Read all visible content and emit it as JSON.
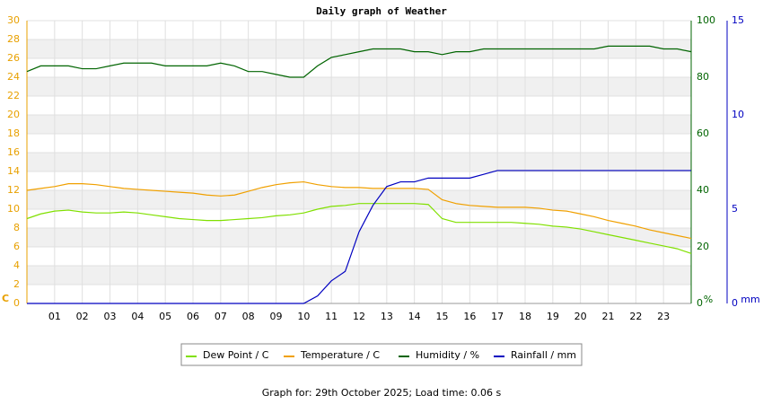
{
  "chart_data": {
    "type": "line",
    "title": "Daily graph of Weather",
    "footer": "Graph for: 29th October 2025; Load time: 0.06 s",
    "grid": true,
    "x": [
      0,
      0.5,
      1,
      1.5,
      2,
      2.5,
      3,
      3.5,
      4,
      4.5,
      5,
      5.5,
      6,
      6.5,
      7,
      7.5,
      8,
      8.5,
      9,
      9.5,
      10,
      10.5,
      11,
      11.5,
      12,
      12.5,
      13,
      13.5,
      14,
      14.5,
      15,
      15.5,
      16,
      16.5,
      17,
      17.5,
      18,
      18.5,
      19,
      19.5,
      20,
      20.5,
      21,
      21.5,
      22,
      22.5,
      23,
      23.5,
      24
    ],
    "xlim": [
      0,
      24
    ],
    "xticks": [
      {
        "value": 1,
        "label": "01"
      },
      {
        "value": 2,
        "label": "02"
      },
      {
        "value": 3,
        "label": "03"
      },
      {
        "value": 4,
        "label": "04"
      },
      {
        "value": 5,
        "label": "05"
      },
      {
        "value": 6,
        "label": "06"
      },
      {
        "value": 7,
        "label": "07"
      },
      {
        "value": 8,
        "label": "08"
      },
      {
        "value": 9,
        "label": "09"
      },
      10,
      11,
      12,
      13,
      14,
      15,
      16,
      17,
      18,
      19,
      20,
      21,
      22,
      23
    ],
    "ylabel": "C",
    "ylim": [
      0,
      30
    ],
    "yticks": [
      0,
      2,
      4,
      6,
      8,
      10,
      12,
      14,
      16,
      18,
      20,
      22,
      24,
      26,
      28,
      30
    ],
    "ycolor": "#e8a000",
    "y2label": "%",
    "y2lim": [
      0,
      100
    ],
    "y2ticks": [
      0,
      20,
      40,
      60,
      80,
      100
    ],
    "y2color": "#006400",
    "y3label": "mm",
    "y3lim": [
      0,
      15
    ],
    "y3ticks": [
      0,
      5,
      10,
      15
    ],
    "y3color": "#0000c0",
    "series": [
      {
        "name": "Dew Point / C",
        "color": "#80e000",
        "axis": "y",
        "values": [
          9.0,
          9.5,
          9.8,
          9.9,
          9.7,
          9.6,
          9.6,
          9.7,
          9.6,
          9.4,
          9.2,
          9.0,
          8.9,
          8.8,
          8.8,
          8.9,
          9.0,
          9.1,
          9.3,
          9.4,
          9.6,
          10.0,
          10.3,
          10.4,
          10.6,
          10.6,
          10.6,
          10.6,
          10.6,
          10.5,
          9.0,
          8.6,
          8.6,
          8.6,
          8.6,
          8.6,
          8.5,
          8.4,
          8.2,
          8.1,
          7.9,
          7.6,
          7.3,
          7.0,
          6.7,
          6.4,
          6.1,
          5.8,
          5.3
        ]
      },
      {
        "name": "Temperature / C",
        "color": "#f0a000",
        "axis": "y",
        "values": [
          12.0,
          12.2,
          12.4,
          12.7,
          12.7,
          12.6,
          12.4,
          12.2,
          12.1,
          12.0,
          11.9,
          11.8,
          11.7,
          11.5,
          11.4,
          11.5,
          11.9,
          12.3,
          12.6,
          12.8,
          12.9,
          12.6,
          12.4,
          12.3,
          12.3,
          12.2,
          12.2,
          12.2,
          12.2,
          12.1,
          11.0,
          10.6,
          10.4,
          10.3,
          10.2,
          10.2,
          10.2,
          10.1,
          9.9,
          9.8,
          9.5,
          9.2,
          8.8,
          8.5,
          8.2,
          7.8,
          7.5,
          7.2,
          6.9
        ]
      },
      {
        "name": "Humidity / %",
        "color": "#006400",
        "axis": "y2",
        "values": [
          82,
          84,
          84,
          84,
          83,
          83,
          84,
          85,
          85,
          85,
          84,
          84,
          84,
          84,
          85,
          84,
          82,
          82,
          81,
          80,
          80,
          84,
          87,
          88,
          89,
          90,
          90,
          90,
          89,
          89,
          88,
          89,
          89,
          90,
          90,
          90,
          90,
          90,
          90,
          90,
          90,
          90,
          91,
          91,
          91,
          91,
          90,
          90,
          89
        ]
      },
      {
        "name": "Rainfall / mm",
        "color": "#0000c0",
        "axis": "y3",
        "values": [
          0,
          0,
          0,
          0,
          0,
          0,
          0,
          0,
          0,
          0,
          0,
          0,
          0,
          0,
          0,
          0,
          0,
          0,
          0,
          0,
          0,
          0.4,
          1.2,
          1.7,
          3.8,
          5.2,
          6.2,
          6.45,
          6.45,
          6.65,
          6.65,
          6.65,
          6.65,
          6.85,
          7.05,
          7.05,
          7.05,
          7.05,
          7.05,
          7.05,
          7.05,
          7.05,
          7.05,
          7.05,
          7.05,
          7.05,
          7.05,
          7.05,
          7.05
        ]
      }
    ]
  }
}
